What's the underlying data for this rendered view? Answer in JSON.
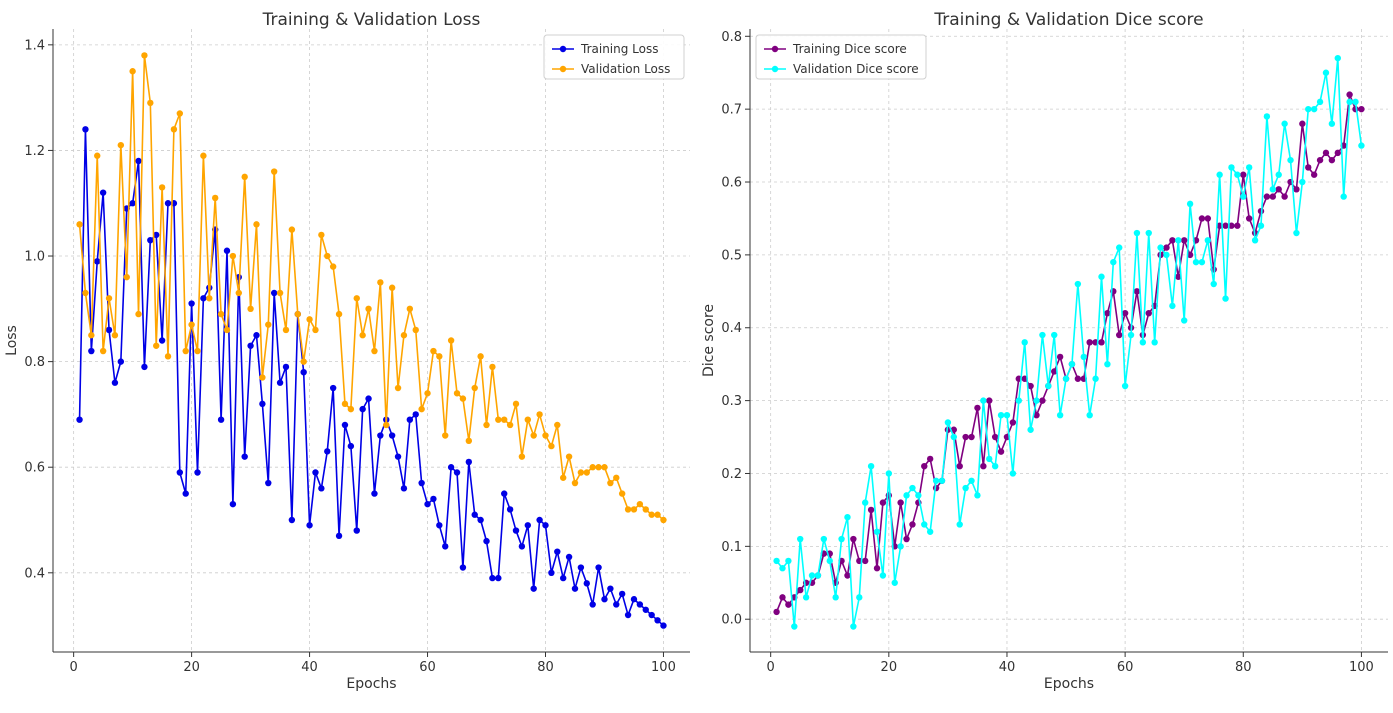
{
  "chart_data": [
    {
      "type": "line",
      "title": "Training & Validation Loss",
      "xlabel": "Epochs",
      "ylabel": "Loss",
      "xlim": [
        -3.5,
        104.5
      ],
      "ylim": [
        0.25,
        1.43
      ],
      "xticks": [
        0,
        20,
        40,
        60,
        80,
        100
      ],
      "yticks": [
        0.4,
        0.6,
        0.8,
        1.0,
        1.2,
        1.4
      ],
      "xtick_labels": [
        "0",
        "20",
        "40",
        "60",
        "80",
        "100"
      ],
      "ytick_labels": [
        "0.4",
        "0.6",
        "0.8",
        "1.0",
        "1.2",
        "1.4"
      ],
      "grid": true,
      "legend_position": "top-right",
      "x": [
        1,
        2,
        3,
        4,
        5,
        6,
        7,
        8,
        9,
        10,
        11,
        12,
        13,
        14,
        15,
        16,
        17,
        18,
        19,
        20,
        21,
        22,
        23,
        24,
        25,
        26,
        27,
        28,
        29,
        30,
        31,
        32,
        33,
        34,
        35,
        36,
        37,
        38,
        39,
        40,
        41,
        42,
        43,
        44,
        45,
        46,
        47,
        48,
        49,
        50,
        51,
        52,
        53,
        54,
        55,
        56,
        57,
        58,
        59,
        60,
        61,
        62,
        63,
        64,
        65,
        66,
        67,
        68,
        69,
        70,
        71,
        72,
        73,
        74,
        75,
        76,
        77,
        78,
        79,
        80,
        81,
        82,
        83,
        84,
        85,
        86,
        87,
        88,
        89,
        90,
        91,
        92,
        93,
        94,
        95,
        96,
        97,
        98,
        99,
        100
      ],
      "series": [
        {
          "name": "Training Loss",
          "color": "#0000e6",
          "values": [
            0.69,
            1.24,
            0.82,
            0.99,
            1.12,
            0.86,
            0.76,
            0.8,
            1.09,
            1.1,
            1.18,
            0.79,
            1.03,
            1.04,
            0.84,
            1.1,
            1.1,
            0.59,
            0.55,
            0.91,
            0.59,
            0.92,
            0.94,
            1.05,
            0.69,
            1.01,
            0.53,
            0.96,
            0.62,
            0.83,
            0.85,
            0.72,
            0.57,
            0.93,
            0.76,
            0.79,
            0.5,
            0.89,
            0.78,
            0.49,
            0.59,
            0.56,
            0.63,
            0.75,
            0.47,
            0.68,
            0.64,
            0.48,
            0.71,
            0.73,
            0.55,
            0.66,
            0.69,
            0.66,
            0.62,
            0.56,
            0.69,
            0.7,
            0.57,
            0.53,
            0.54,
            0.49,
            0.45,
            0.6,
            0.59,
            0.41,
            0.61,
            0.51,
            0.5,
            0.46,
            0.39,
            0.39,
            0.55,
            0.52,
            0.48,
            0.45,
            0.49,
            0.37,
            0.5,
            0.49,
            0.4,
            0.44,
            0.39,
            0.43,
            0.37,
            0.41,
            0.38,
            0.34,
            0.41,
            0.35,
            0.37,
            0.34,
            0.36,
            0.32,
            0.35,
            0.34,
            0.33,
            0.32,
            0.31,
            0.3
          ]
        },
        {
          "name": "Validation Loss",
          "color": "#ffa500",
          "values": [
            1.06,
            0.93,
            0.85,
            1.19,
            0.82,
            0.92,
            0.85,
            1.21,
            0.96,
            1.35,
            0.89,
            1.38,
            1.29,
            0.83,
            1.13,
            0.81,
            1.24,
            1.27,
            0.82,
            0.87,
            0.82,
            1.19,
            0.92,
            1.11,
            0.89,
            0.86,
            1.0,
            0.93,
            1.15,
            0.9,
            1.06,
            0.77,
            0.87,
            1.16,
            0.93,
            0.86,
            1.05,
            0.89,
            0.8,
            0.88,
            0.86,
            1.04,
            1.0,
            0.98,
            0.89,
            0.72,
            0.71,
            0.92,
            0.85,
            0.9,
            0.82,
            0.95,
            0.68,
            0.94,
            0.75,
            0.85,
            0.9,
            0.86,
            0.71,
            0.74,
            0.82,
            0.81,
            0.66,
            0.84,
            0.74,
            0.73,
            0.65,
            0.75,
            0.81,
            0.68,
            0.79,
            0.69,
            0.69,
            0.68,
            0.72,
            0.62,
            0.69,
            0.66,
            0.7,
            0.66,
            0.64,
            0.68,
            0.58,
            0.62,
            0.57,
            0.59,
            0.59,
            0.6,
            0.6,
            0.6,
            0.57,
            0.58,
            0.55,
            0.52,
            0.52,
            0.53,
            0.52,
            0.51,
            0.51,
            0.5
          ]
        }
      ]
    },
    {
      "type": "line",
      "title": "Training & Validation Dice score",
      "xlabel": "Epochs",
      "ylabel": "Dice score",
      "xlim": [
        -3.5,
        104.5
      ],
      "ylim": [
        -0.045,
        0.81
      ],
      "xticks": [
        0,
        20,
        40,
        60,
        80,
        100
      ],
      "yticks": [
        0.0,
        0.1,
        0.2,
        0.3,
        0.4,
        0.5,
        0.6,
        0.7,
        0.8
      ],
      "xtick_labels": [
        "0",
        "20",
        "40",
        "60",
        "80",
        "100"
      ],
      "ytick_labels": [
        "0.0",
        "0.1",
        "0.2",
        "0.3",
        "0.4",
        "0.5",
        "0.6",
        "0.7",
        "0.8"
      ],
      "grid": true,
      "legend_position": "top-left",
      "x": [
        1,
        2,
        3,
        4,
        5,
        6,
        7,
        8,
        9,
        10,
        11,
        12,
        13,
        14,
        15,
        16,
        17,
        18,
        19,
        20,
        21,
        22,
        23,
        24,
        25,
        26,
        27,
        28,
        29,
        30,
        31,
        32,
        33,
        34,
        35,
        36,
        37,
        38,
        39,
        40,
        41,
        42,
        43,
        44,
        45,
        46,
        47,
        48,
        49,
        50,
        51,
        52,
        53,
        54,
        55,
        56,
        57,
        58,
        59,
        60,
        61,
        62,
        63,
        64,
        65,
        66,
        67,
        68,
        69,
        70,
        71,
        72,
        73,
        74,
        75,
        76,
        77,
        78,
        79,
        80,
        81,
        82,
        83,
        84,
        85,
        86,
        87,
        88,
        89,
        90,
        91,
        92,
        93,
        94,
        95,
        96,
        97,
        98,
        99,
        100
      ],
      "series": [
        {
          "name": "Training Dice score",
          "color": "#800080",
          "values": [
            0.01,
            0.03,
            0.02,
            0.03,
            0.04,
            0.05,
            0.05,
            0.06,
            0.09,
            0.09,
            0.05,
            0.08,
            0.06,
            0.11,
            0.08,
            0.08,
            0.15,
            0.07,
            0.16,
            0.17,
            0.1,
            0.16,
            0.11,
            0.13,
            0.16,
            0.21,
            0.22,
            0.18,
            0.19,
            0.26,
            0.26,
            0.21,
            0.25,
            0.25,
            0.29,
            0.21,
            0.3,
            0.25,
            0.23,
            0.25,
            0.27,
            0.33,
            0.33,
            0.32,
            0.28,
            0.3,
            0.32,
            0.34,
            0.36,
            0.33,
            0.35,
            0.33,
            0.33,
            0.38,
            0.38,
            0.38,
            0.42,
            0.45,
            0.39,
            0.42,
            0.4,
            0.45,
            0.39,
            0.42,
            0.43,
            0.5,
            0.51,
            0.52,
            0.47,
            0.52,
            0.5,
            0.52,
            0.55,
            0.55,
            0.48,
            0.54,
            0.54,
            0.54,
            0.54,
            0.61,
            0.55,
            0.53,
            0.56,
            0.58,
            0.58,
            0.59,
            0.58,
            0.6,
            0.59,
            0.68,
            0.62,
            0.61,
            0.63,
            0.64,
            0.63,
            0.64,
            0.65,
            0.72,
            0.7,
            0.7
          ]
        },
        {
          "name": "Validation Dice score",
          "color": "#00ffff",
          "values": [
            0.08,
            0.07,
            0.08,
            -0.01,
            0.11,
            0.03,
            0.06,
            0.06,
            0.11,
            0.08,
            0.03,
            0.11,
            0.14,
            -0.01,
            0.03,
            0.16,
            0.21,
            0.12,
            0.06,
            0.2,
            0.05,
            0.1,
            0.17,
            0.18,
            0.17,
            0.13,
            0.12,
            0.19,
            0.19,
            0.27,
            0.25,
            0.13,
            0.18,
            0.19,
            0.17,
            0.3,
            0.22,
            0.21,
            0.28,
            0.28,
            0.2,
            0.3,
            0.38,
            0.26,
            0.3,
            0.39,
            0.32,
            0.39,
            0.28,
            0.33,
            0.35,
            0.46,
            0.36,
            0.28,
            0.33,
            0.47,
            0.35,
            0.49,
            0.51,
            0.32,
            0.39,
            0.53,
            0.38,
            0.53,
            0.38,
            0.51,
            0.5,
            0.43,
            0.52,
            0.41,
            0.57,
            0.49,
            0.49,
            0.52,
            0.46,
            0.61,
            0.44,
            0.62,
            0.61,
            0.58,
            0.62,
            0.52,
            0.54,
            0.69,
            0.59,
            0.61,
            0.68,
            0.63,
            0.53,
            0.6,
            0.7,
            0.7,
            0.71,
            0.75,
            0.68,
            0.77,
            0.58,
            0.71,
            0.71,
            0.65
          ]
        }
      ]
    }
  ]
}
